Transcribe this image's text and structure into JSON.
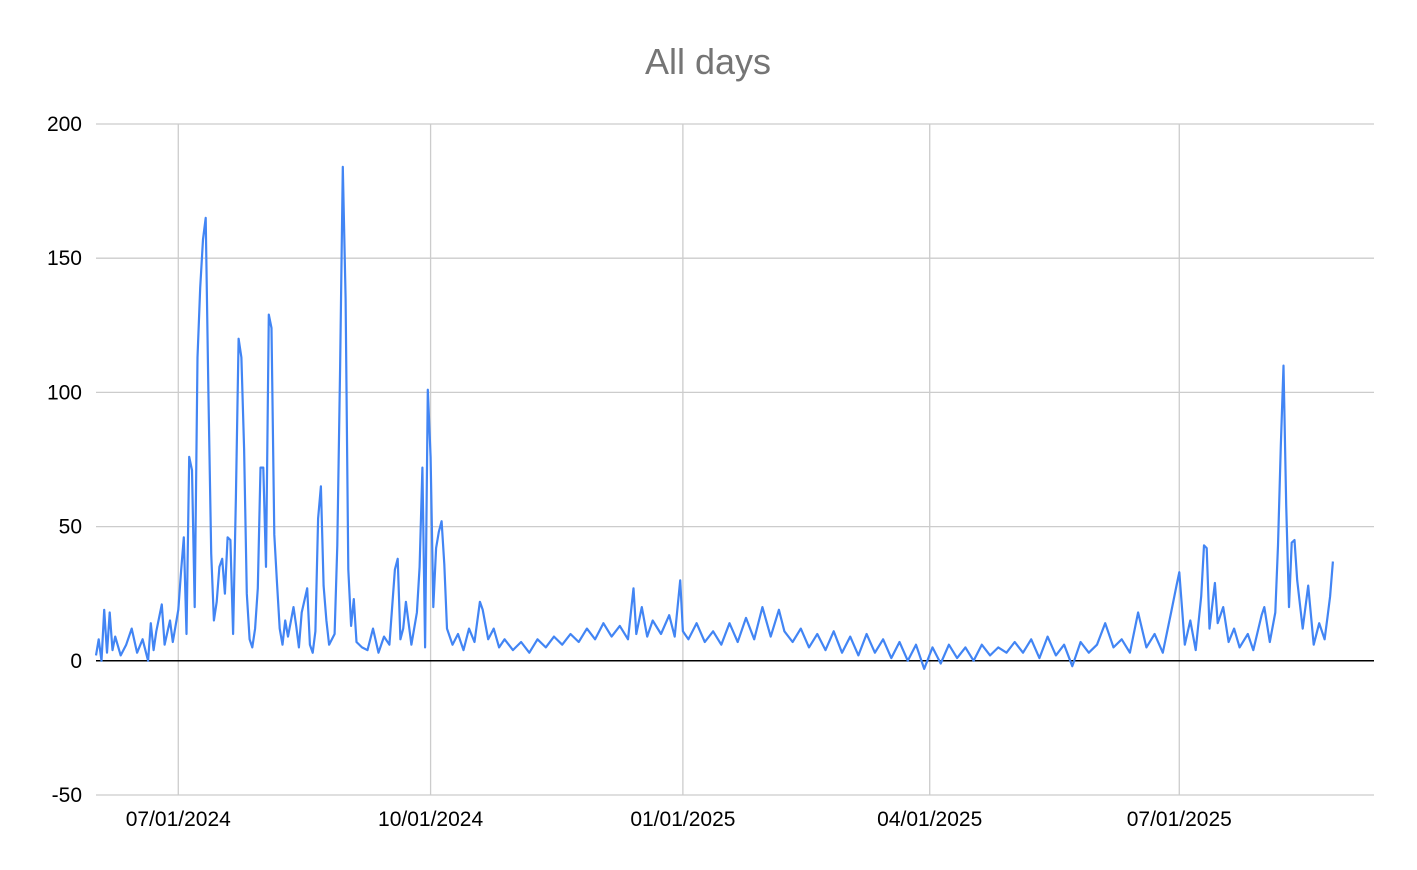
{
  "chart_data": {
    "type": "line",
    "title": "All days",
    "xlabel": "",
    "ylabel": "",
    "x_range": [
      "2024-06-01",
      "2025-09-10"
    ],
    "ylim": [
      -50,
      200
    ],
    "y_ticks": [
      -50,
      0,
      50,
      100,
      150,
      200
    ],
    "x_ticks": [
      {
        "date": "2024-07-01",
        "label": "07/01/2024"
      },
      {
        "date": "2024-10-01",
        "label": "10/01/2024"
      },
      {
        "date": "2025-01-01",
        "label": "01/01/2025"
      },
      {
        "date": "2025-04-01",
        "label": "04/01/2025"
      },
      {
        "date": "2025-07-01",
        "label": "07/01/2025"
      }
    ],
    "grid": true,
    "legend": "none",
    "series": [
      {
        "color": "#4285f4",
        "points": [
          [
            "2024-06-01",
            2
          ],
          [
            "2024-06-02",
            8
          ],
          [
            "2024-06-03",
            0
          ],
          [
            "2024-06-04",
            19
          ],
          [
            "2024-06-05",
            3
          ],
          [
            "2024-06-06",
            18
          ],
          [
            "2024-06-07",
            4
          ],
          [
            "2024-06-08",
            9
          ],
          [
            "2024-06-10",
            2
          ],
          [
            "2024-06-12",
            6
          ],
          [
            "2024-06-14",
            12
          ],
          [
            "2024-06-16",
            3
          ],
          [
            "2024-06-18",
            8
          ],
          [
            "2024-06-20",
            0
          ],
          [
            "2024-06-21",
            14
          ],
          [
            "2024-06-22",
            4
          ],
          [
            "2024-06-23",
            11
          ],
          [
            "2024-06-25",
            21
          ],
          [
            "2024-06-26",
            6
          ],
          [
            "2024-06-28",
            15
          ],
          [
            "2024-06-29",
            7
          ],
          [
            "2024-07-01",
            19
          ],
          [
            "2024-07-02",
            33
          ],
          [
            "2024-07-03",
            46
          ],
          [
            "2024-07-04",
            10
          ],
          [
            "2024-07-05",
            76
          ],
          [
            "2024-07-06",
            71
          ],
          [
            "2024-07-07",
            20
          ],
          [
            "2024-07-08",
            113
          ],
          [
            "2024-07-09",
            139
          ],
          [
            "2024-07-10",
            157
          ],
          [
            "2024-07-11",
            165
          ],
          [
            "2024-07-12",
            100
          ],
          [
            "2024-07-13",
            40
          ],
          [
            "2024-07-14",
            15
          ],
          [
            "2024-07-15",
            22
          ],
          [
            "2024-07-16",
            35
          ],
          [
            "2024-07-17",
            38
          ],
          [
            "2024-07-18",
            25
          ],
          [
            "2024-07-19",
            46
          ],
          [
            "2024-07-20",
            45
          ],
          [
            "2024-07-21",
            10
          ],
          [
            "2024-07-22",
            61
          ],
          [
            "2024-07-23",
            120
          ],
          [
            "2024-07-24",
            113
          ],
          [
            "2024-07-25",
            79
          ],
          [
            "2024-07-26",
            25
          ],
          [
            "2024-07-27",
            8
          ],
          [
            "2024-07-28",
            5
          ],
          [
            "2024-07-29",
            12
          ],
          [
            "2024-07-30",
            27
          ],
          [
            "2024-07-31",
            72
          ],
          [
            "2024-08-01",
            72
          ],
          [
            "2024-08-02",
            35
          ],
          [
            "2024-08-03",
            129
          ],
          [
            "2024-08-04",
            124
          ],
          [
            "2024-08-05",
            47
          ],
          [
            "2024-08-06",
            29
          ],
          [
            "2024-08-07",
            12
          ],
          [
            "2024-08-08",
            6
          ],
          [
            "2024-08-09",
            15
          ],
          [
            "2024-08-10",
            9
          ],
          [
            "2024-08-12",
            20
          ],
          [
            "2024-08-13",
            13
          ],
          [
            "2024-08-14",
            5
          ],
          [
            "2024-08-15",
            18
          ],
          [
            "2024-08-17",
            27
          ],
          [
            "2024-08-18",
            6
          ],
          [
            "2024-08-19",
            3
          ],
          [
            "2024-08-20",
            11
          ],
          [
            "2024-08-21",
            53
          ],
          [
            "2024-08-22",
            65
          ],
          [
            "2024-08-23",
            28
          ],
          [
            "2024-08-24",
            15
          ],
          [
            "2024-08-25",
            6
          ],
          [
            "2024-08-27",
            10
          ],
          [
            "2024-08-28",
            43
          ],
          [
            "2024-08-29",
            109
          ],
          [
            "2024-08-30",
            184
          ],
          [
            "2024-08-31",
            135
          ],
          [
            "2024-09-01",
            34
          ],
          [
            "2024-09-02",
            13
          ],
          [
            "2024-09-03",
            23
          ],
          [
            "2024-09-04",
            7
          ],
          [
            "2024-09-06",
            5
          ],
          [
            "2024-09-08",
            4
          ],
          [
            "2024-09-10",
            12
          ],
          [
            "2024-09-12",
            3
          ],
          [
            "2024-09-14",
            9
          ],
          [
            "2024-09-16",
            6
          ],
          [
            "2024-09-18",
            34
          ],
          [
            "2024-09-19",
            38
          ],
          [
            "2024-09-20",
            8
          ],
          [
            "2024-09-21",
            12
          ],
          [
            "2024-09-22",
            22
          ],
          [
            "2024-09-24",
            6
          ],
          [
            "2024-09-26",
            18
          ],
          [
            "2024-09-27",
            35
          ],
          [
            "2024-09-28",
            72
          ],
          [
            "2024-09-29",
            5
          ],
          [
            "2024-09-30",
            101
          ],
          [
            "2024-10-01",
            76
          ],
          [
            "2024-10-02",
            20
          ],
          [
            "2024-10-03",
            42
          ],
          [
            "2024-10-04",
            48
          ],
          [
            "2024-10-05",
            52
          ],
          [
            "2024-10-06",
            36
          ],
          [
            "2024-10-07",
            12
          ],
          [
            "2024-10-09",
            6
          ],
          [
            "2024-10-11",
            10
          ],
          [
            "2024-10-13",
            4
          ],
          [
            "2024-10-15",
            12
          ],
          [
            "2024-10-17",
            7
          ],
          [
            "2024-10-19",
            22
          ],
          [
            "2024-10-20",
            19
          ],
          [
            "2024-10-22",
            8
          ],
          [
            "2024-10-24",
            12
          ],
          [
            "2024-10-26",
            5
          ],
          [
            "2024-10-28",
            8
          ],
          [
            "2024-10-31",
            4
          ],
          [
            "2024-11-03",
            7
          ],
          [
            "2024-11-06",
            3
          ],
          [
            "2024-11-09",
            8
          ],
          [
            "2024-11-12",
            5
          ],
          [
            "2024-11-15",
            9
          ],
          [
            "2024-11-18",
            6
          ],
          [
            "2024-11-21",
            10
          ],
          [
            "2024-11-24",
            7
          ],
          [
            "2024-11-27",
            12
          ],
          [
            "2024-11-30",
            8
          ],
          [
            "2024-12-03",
            14
          ],
          [
            "2024-12-06",
            9
          ],
          [
            "2024-12-09",
            13
          ],
          [
            "2024-12-12",
            8
          ],
          [
            "2024-12-14",
            27
          ],
          [
            "2024-12-15",
            10
          ],
          [
            "2024-12-17",
            20
          ],
          [
            "2024-12-19",
            9
          ],
          [
            "2024-12-21",
            15
          ],
          [
            "2024-12-24",
            10
          ],
          [
            "2024-12-27",
            17
          ],
          [
            "2024-12-29",
            9
          ],
          [
            "2024-12-31",
            30
          ],
          [
            "2025-01-01",
            11
          ],
          [
            "2025-01-03",
            8
          ],
          [
            "2025-01-06",
            14
          ],
          [
            "2025-01-09",
            7
          ],
          [
            "2025-01-12",
            11
          ],
          [
            "2025-01-15",
            6
          ],
          [
            "2025-01-18",
            14
          ],
          [
            "2025-01-21",
            7
          ],
          [
            "2025-01-24",
            16
          ],
          [
            "2025-01-27",
            8
          ],
          [
            "2025-01-30",
            20
          ],
          [
            "2025-02-02",
            9
          ],
          [
            "2025-02-05",
            19
          ],
          [
            "2025-02-07",
            11
          ],
          [
            "2025-02-10",
            7
          ],
          [
            "2025-02-13",
            12
          ],
          [
            "2025-02-16",
            5
          ],
          [
            "2025-02-19",
            10
          ],
          [
            "2025-02-22",
            4
          ],
          [
            "2025-02-25",
            11
          ],
          [
            "2025-02-28",
            3
          ],
          [
            "2025-03-03",
            9
          ],
          [
            "2025-03-06",
            2
          ],
          [
            "2025-03-09",
            10
          ],
          [
            "2025-03-12",
            3
          ],
          [
            "2025-03-15",
            8
          ],
          [
            "2025-03-18",
            1
          ],
          [
            "2025-03-21",
            7
          ],
          [
            "2025-03-24",
            0
          ],
          [
            "2025-03-27",
            6
          ],
          [
            "2025-03-30",
            -3
          ],
          [
            "2025-04-02",
            5
          ],
          [
            "2025-04-05",
            -1
          ],
          [
            "2025-04-08",
            6
          ],
          [
            "2025-04-11",
            1
          ],
          [
            "2025-04-14",
            5
          ],
          [
            "2025-04-17",
            0
          ],
          [
            "2025-04-20",
            6
          ],
          [
            "2025-04-23",
            2
          ],
          [
            "2025-04-26",
            5
          ],
          [
            "2025-04-29",
            3
          ],
          [
            "2025-05-02",
            7
          ],
          [
            "2025-05-05",
            3
          ],
          [
            "2025-05-08",
            8
          ],
          [
            "2025-05-11",
            1
          ],
          [
            "2025-05-14",
            9
          ],
          [
            "2025-05-17",
            2
          ],
          [
            "2025-05-20",
            6
          ],
          [
            "2025-05-23",
            -2
          ],
          [
            "2025-05-26",
            7
          ],
          [
            "2025-05-29",
            3
          ],
          [
            "2025-06-01",
            6
          ],
          [
            "2025-06-04",
            14
          ],
          [
            "2025-06-07",
            5
          ],
          [
            "2025-06-10",
            8
          ],
          [
            "2025-06-13",
            3
          ],
          [
            "2025-06-16",
            18
          ],
          [
            "2025-06-19",
            5
          ],
          [
            "2025-06-22",
            10
          ],
          [
            "2025-06-25",
            3
          ],
          [
            "2025-06-28",
            18
          ],
          [
            "2025-06-30",
            28
          ],
          [
            "2025-07-01",
            33
          ],
          [
            "2025-07-03",
            6
          ],
          [
            "2025-07-05",
            15
          ],
          [
            "2025-07-07",
            4
          ],
          [
            "2025-07-09",
            24
          ],
          [
            "2025-07-10",
            43
          ],
          [
            "2025-07-11",
            42
          ],
          [
            "2025-07-12",
            12
          ],
          [
            "2025-07-14",
            29
          ],
          [
            "2025-07-15",
            14
          ],
          [
            "2025-07-17",
            20
          ],
          [
            "2025-07-19",
            7
          ],
          [
            "2025-07-21",
            12
          ],
          [
            "2025-07-23",
            5
          ],
          [
            "2025-07-26",
            10
          ],
          [
            "2025-07-28",
            4
          ],
          [
            "2025-07-31",
            17
          ],
          [
            "2025-08-01",
            20
          ],
          [
            "2025-08-03",
            7
          ],
          [
            "2025-08-05",
            18
          ],
          [
            "2025-08-06",
            43
          ],
          [
            "2025-08-07",
            80
          ],
          [
            "2025-08-08",
            110
          ],
          [
            "2025-08-09",
            58
          ],
          [
            "2025-08-10",
            20
          ],
          [
            "2025-08-11",
            44
          ],
          [
            "2025-08-12",
            45
          ],
          [
            "2025-08-13",
            30
          ],
          [
            "2025-08-15",
            12
          ],
          [
            "2025-08-17",
            28
          ],
          [
            "2025-08-19",
            6
          ],
          [
            "2025-08-21",
            14
          ],
          [
            "2025-08-23",
            8
          ],
          [
            "2025-08-24",
            16
          ],
          [
            "2025-08-25",
            24
          ],
          [
            "2025-08-26",
            37
          ]
        ]
      }
    ]
  }
}
